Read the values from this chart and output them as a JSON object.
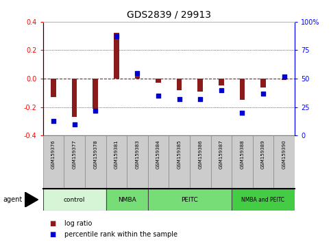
{
  "title": "GDS2839 / 29913",
  "samples": [
    "GSM159376",
    "GSM159377",
    "GSM159378",
    "GSM159381",
    "GSM159383",
    "GSM159384",
    "GSM159385",
    "GSM159386",
    "GSM159387",
    "GSM159388",
    "GSM159389",
    "GSM159390"
  ],
  "log_ratio": [
    -0.13,
    -0.27,
    -0.21,
    0.32,
    0.03,
    -0.03,
    -0.08,
    -0.09,
    -0.05,
    -0.15,
    -0.06,
    -0.01
  ],
  "percentile_rank": [
    13,
    10,
    22,
    87,
    55,
    35,
    32,
    32,
    40,
    20,
    37,
    52
  ],
  "groups": [
    {
      "label": "control",
      "start": 0,
      "end": 3,
      "color": "#d6f5d6"
    },
    {
      "label": "NMBA",
      "start": 3,
      "end": 5,
      "color": "#77dd77"
    },
    {
      "label": "PEITC",
      "start": 5,
      "end": 9,
      "color": "#77dd77"
    },
    {
      "label": "NMBA and PEITC",
      "start": 9,
      "end": 12,
      "color": "#44cc44"
    }
  ],
  "ylim": [
    -0.4,
    0.4
  ],
  "yticks_left": [
    -0.4,
    -0.2,
    0.0,
    0.2,
    0.4
  ],
  "yticks_right": [
    0,
    25,
    50,
    75,
    100
  ],
  "bar_color": "#8B1A1A",
  "dot_color": "#0000CC",
  "dot_size": 22,
  "zero_line_color": "#CC0000",
  "grid_color": "#000000",
  "bar_width": 0.25,
  "label_box_color": "#cccccc",
  "label_box_edge": "#888888"
}
